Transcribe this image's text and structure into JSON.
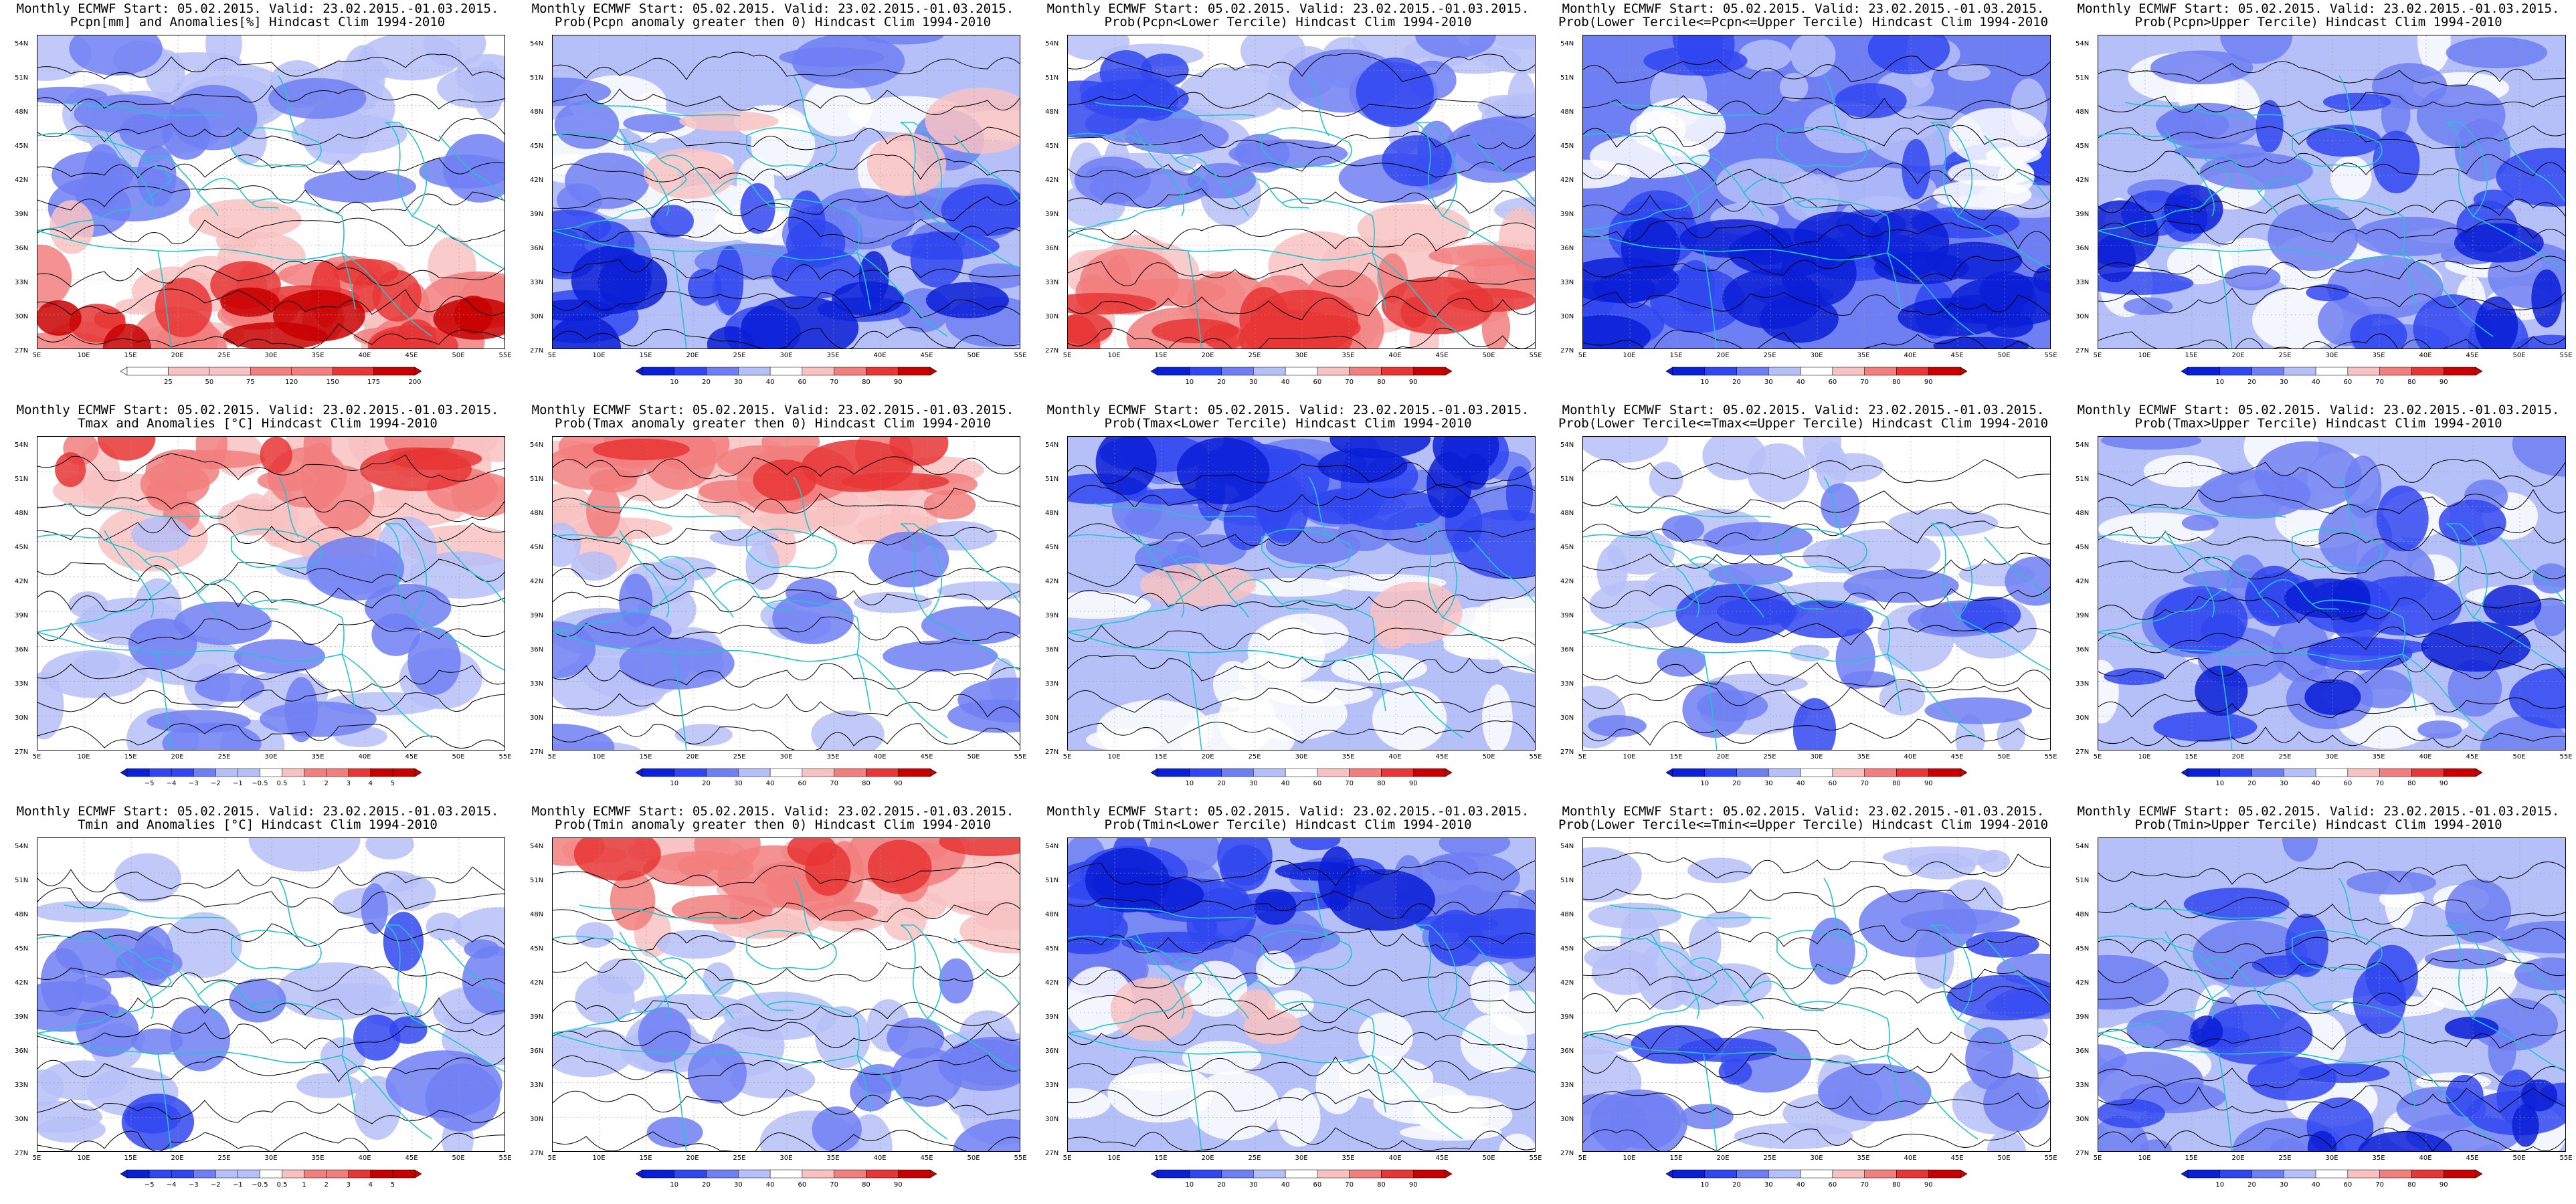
{
  "x_ticks": [
    "5E",
    "10E",
    "15E",
    "20E",
    "25E",
    "30E",
    "35E",
    "40E",
    "45E",
    "50E",
    "55E"
  ],
  "y_ticks": [
    "54N",
    "51N",
    "48N",
    "45N",
    "42N",
    "39N",
    "36N",
    "33N",
    "30N",
    "27N"
  ],
  "colorbars": {
    "pcpn_anom": [
      "25",
      "50",
      "75",
      "120",
      "150",
      "175",
      "200"
    ],
    "tmax_anom": [
      "−5",
      "−4",
      "−3",
      "−2",
      "−1",
      "−0.5",
      "0.5",
      "1",
      "2",
      "3",
      "4",
      "5"
    ],
    "tmin_anom": [
      "−5",
      "−4",
      "−3",
      "−2",
      "−1",
      "−0.5",
      "0.5",
      "1",
      "2",
      "3",
      "4",
      "5"
    ],
    "prob": [
      "10",
      "20",
      "30",
      "40",
      "60",
      "70",
      "80",
      "90"
    ]
  },
  "colors": {
    "blue_dark": "#0a1fd6",
    "blue": "#3046f0",
    "blue_mid": "#6e7ff3",
    "blue_light": "#b6c0f8",
    "white": "#ffffff",
    "pink_light": "#f8c2c2",
    "red_mid": "#f27e7e",
    "red": "#e83535",
    "red_dark": "#c80000",
    "coast": "#22c4cf",
    "contour": "#000000"
  },
  "rows": [
    {
      "name": "pcpn",
      "panels": [
        {
          "line1": "Monthly ECMWF Start: 05.02.2015. Valid: 23.02.2015.-01.03.2015.",
          "line2": "Pcpn[mm] and Anomalies[%] Hindcast Clim 1994-2010",
          "cbar": "pcpn_anom",
          "theme": "pcpn_anom"
        },
        {
          "line1": "Monthly ECMWF Start: 05.02.2015. Valid: 23.02.2015.-01.03.2015.",
          "line2": "Prob(Pcpn anomaly greater then 0) Hindcast Clim 1994-2010",
          "cbar": "prob",
          "theme": "blue_heavy"
        },
        {
          "line1": "Monthly ECMWF Start: 05.02.2015. Valid: 23.02.2015.-01.03.2015.",
          "line2": "Prob(Pcpn<Lower Tercile) Hindcast Clim 1994-2010",
          "cbar": "prob",
          "theme": "red_south"
        },
        {
          "line1": "Monthly ECMWF Start: 05.02.2015. Valid: 23.02.2015.-01.03.2015.",
          "line2": "Prob(Lower Tercile<=Pcpn<=Upper Tercile) Hindcast Clim 1994-2010",
          "cbar": "prob",
          "theme": "blue_dark_south"
        },
        {
          "line1": "Monthly ECMWF Start: 05.02.2015. Valid: 23.02.2015.-01.03.2015.",
          "line2": "Prob(Pcpn>Upper Tercile) Hindcast Clim 1994-2010",
          "cbar": "prob",
          "theme": "blue_mid"
        }
      ]
    },
    {
      "name": "tmax",
      "panels": [
        {
          "line1": "Monthly ECMWF Start: 05.02.2015. Valid: 23.02.2015.-01.03.2015.",
          "line2": "Tmax and Anomalies [°C] Hindcast Clim 1994-2010",
          "cbar": "tmax_anom",
          "theme": "red_north"
        },
        {
          "line1": "Monthly ECMWF Start: 05.02.2015. Valid: 23.02.2015.-01.03.2015.",
          "line2": "Prob(Tmax anomaly greater then 0) Hindcast Clim 1994-2010",
          "cbar": "prob",
          "theme": "red_north"
        },
        {
          "line1": "Monthly ECMWF Start: 05.02.2015. Valid: 23.02.2015.-01.03.2015.",
          "line2": "Prob(Tmax<Lower Tercile) Hindcast Clim 1994-2010",
          "cbar": "prob",
          "theme": "blue_north"
        },
        {
          "line1": "Monthly ECMWF Start: 05.02.2015. Valid: 23.02.2015.-01.03.2015.",
          "line2": "Prob(Lower Tercile<=Tmax<=Upper Tercile) Hindcast Clim 1994-2010",
          "cbar": "prob",
          "theme": "blue_light"
        },
        {
          "line1": "Monthly ECMWF Start: 05.02.2015. Valid: 23.02.2015.-01.03.2015.",
          "line2": "Prob(Tmax>Upper Tercile) Hindcast Clim 1994-2010",
          "cbar": "prob",
          "theme": "blue_mid"
        }
      ]
    },
    {
      "name": "tmin",
      "panels": [
        {
          "line1": "Monthly ECMWF Start: 05.02.2015. Valid: 23.02.2015.-01.03.2015.",
          "line2": "Tmin and Anomalies [°C] Hindcast Clim 1994-2010",
          "cbar": "tmin_anom",
          "theme": "blue_light"
        },
        {
          "line1": "Monthly ECMWF Start: 05.02.2015. Valid: 23.02.2015.-01.03.2015.",
          "line2": "Prob(Tmin anomaly greater then 0) Hindcast Clim 1994-2010",
          "cbar": "prob",
          "theme": "red_north"
        },
        {
          "line1": "Monthly ECMWF Start: 05.02.2015. Valid: 23.02.2015.-01.03.2015.",
          "line2": "Prob(Tmin<Lower Tercile) Hindcast Clim 1994-2010",
          "cbar": "prob",
          "theme": "blue_north"
        },
        {
          "line1": "Monthly ECMWF Start: 05.02.2015. Valid: 23.02.2015.-01.03.2015.",
          "line2": "Prob(Lower Tercile<=Tmin<=Upper Tercile) Hindcast Clim 1994-2010",
          "cbar": "prob",
          "theme": "blue_light"
        },
        {
          "line1": "Monthly ECMWF Start: 05.02.2015. Valid: 23.02.2015.-01.03.2015.",
          "line2": "Prob(Tmin>Upper Tercile) Hindcast Clim 1994-2010",
          "cbar": "prob",
          "theme": "blue_mid"
        }
      ]
    }
  ]
}
